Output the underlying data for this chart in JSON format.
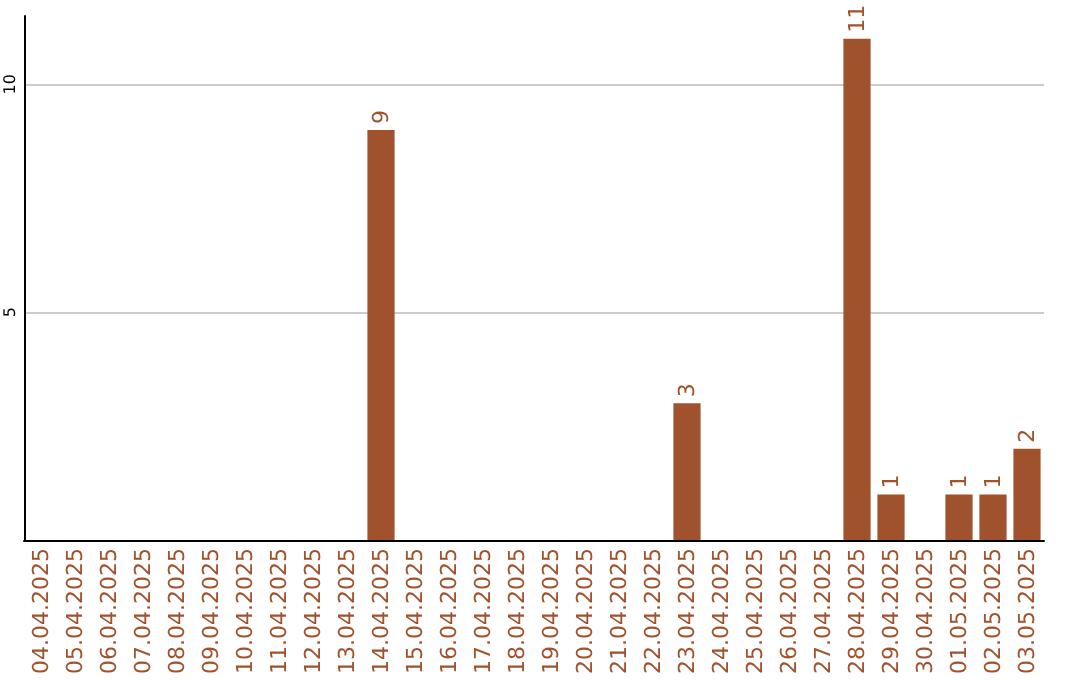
{
  "chart_data": {
    "type": "bar",
    "categories": [
      "04.04.2025",
      "05.04.2025",
      "06.04.2025",
      "07.04.2025",
      "08.04.2025",
      "09.04.2025",
      "10.04.2025",
      "11.04.2025",
      "12.04.2025",
      "13.04.2025",
      "14.04.2025",
      "15.04.2025",
      "16.04.2025",
      "17.04.2025",
      "18.04.2025",
      "19.04.2025",
      "20.04.2025",
      "21.04.2025",
      "22.04.2025",
      "23.04.2025",
      "24.04.2025",
      "25.04.2025",
      "26.04.2025",
      "27.04.2025",
      "28.04.2025",
      "29.04.2025",
      "30.04.2025",
      "01.05.2025",
      "02.05.2025",
      "03.05.2025"
    ],
    "values": [
      0,
      0,
      0,
      0,
      0,
      0,
      0,
      0,
      0,
      0,
      9,
      0,
      0,
      0,
      0,
      0,
      0,
      0,
      0,
      3,
      0,
      0,
      0,
      0,
      11,
      1,
      0,
      1,
      1,
      2
    ],
    "value_labels": [
      null,
      null,
      null,
      null,
      null,
      null,
      null,
      null,
      null,
      null,
      "9",
      null,
      null,
      null,
      null,
      null,
      null,
      null,
      null,
      "3",
      null,
      null,
      null,
      null,
      "11",
      "1",
      null,
      "1",
      "1",
      "2"
    ],
    "color": "#a0522d",
    "ylim": [
      0,
      11.5
    ],
    "yticks": [
      5,
      10
    ],
    "grid": "y"
  }
}
